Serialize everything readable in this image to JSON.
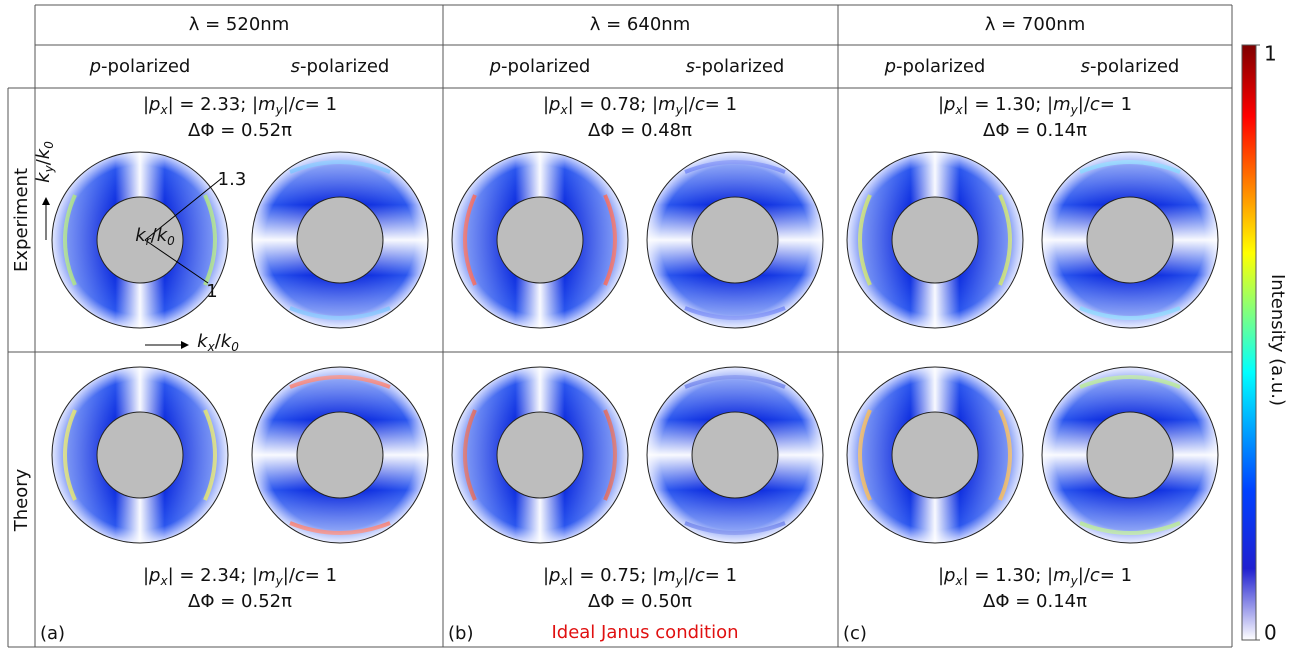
{
  "header": {
    "wavelengths": [
      "λ = 520nm",
      "λ = 640nm",
      "λ = 700nm"
    ],
    "polarizations": [
      [
        [
          "p",
          "i"
        ],
        [
          "-polarized",
          ""
        ]
      ],
      [
        [
          "s",
          "i"
        ],
        [
          "-polarized",
          ""
        ]
      ]
    ]
  },
  "rows": [
    "Experiment",
    "Theory"
  ],
  "experiment": [
    {
      "line1": [
        [
          "|",
          ""
        ],
        [
          "p",
          "i"
        ],
        [
          "x",
          "sub"
        ],
        [
          "| = 2.33; |",
          ""
        ],
        [
          "m",
          "i"
        ],
        [
          "y",
          "sub"
        ],
        [
          "|/",
          ""
        ],
        [
          "c",
          "i"
        ],
        [
          "= 1",
          ""
        ]
      ],
      "line2": "ΔΦ = 0.52π"
    },
    {
      "line1": [
        [
          "|",
          ""
        ],
        [
          "p",
          "i"
        ],
        [
          "x",
          "sub"
        ],
        [
          "| = 0.78; |",
          ""
        ],
        [
          "m",
          "i"
        ],
        [
          "y",
          "sub"
        ],
        [
          "|/",
          ""
        ],
        [
          "c",
          "i"
        ],
        [
          "= 1",
          ""
        ]
      ],
      "line2": "ΔΦ = 0.48π"
    },
    {
      "line1": [
        [
          "|",
          ""
        ],
        [
          "p",
          "i"
        ],
        [
          "x",
          "sub"
        ],
        [
          "| = 1.30; |",
          ""
        ],
        [
          "m",
          "i"
        ],
        [
          "y",
          "sub"
        ],
        [
          "|/",
          ""
        ],
        [
          "c",
          "i"
        ],
        [
          "= 1",
          ""
        ]
      ],
      "line2": "ΔΦ = 0.14π"
    }
  ],
  "theory": [
    {
      "line1": [
        [
          "|",
          ""
        ],
        [
          "p",
          "i"
        ],
        [
          "x",
          "sub"
        ],
        [
          "| = 2.34; |",
          ""
        ],
        [
          "m",
          "i"
        ],
        [
          "y",
          "sub"
        ],
        [
          "|/",
          ""
        ],
        [
          "c",
          "i"
        ],
        [
          "= 1",
          ""
        ]
      ],
      "line2": "ΔΦ = 0.52π"
    },
    {
      "line1": [
        [
          "|",
          ""
        ],
        [
          "p",
          "i"
        ],
        [
          "x",
          "sub"
        ],
        [
          "| = 0.75; |",
          ""
        ],
        [
          "m",
          "i"
        ],
        [
          "y",
          "sub"
        ],
        [
          "|/",
          ""
        ],
        [
          "c",
          "i"
        ],
        [
          "= 1",
          ""
        ]
      ],
      "line2": "ΔΦ = 0.50π"
    },
    {
      "line1": [
        [
          "|",
          ""
        ],
        [
          "p",
          "i"
        ],
        [
          "x",
          "sub"
        ],
        [
          "| = 1.30; |",
          ""
        ],
        [
          "m",
          "i"
        ],
        [
          "y",
          "sub"
        ],
        [
          "|/",
          ""
        ],
        [
          "c",
          "i"
        ],
        [
          "= 1",
          ""
        ]
      ],
      "line2": "ΔΦ = 0.14π"
    }
  ],
  "panels": [
    "(a)",
    "(b)",
    "(c)"
  ],
  "note": "Ideal Janus condition",
  "axes": {
    "ky": [
      [
        "k",
        "i"
      ],
      [
        "y",
        "sub"
      ],
      [
        "/",
        ""
      ],
      [
        "k",
        "i"
      ],
      [
        "0",
        "sub"
      ]
    ],
    "kx": [
      [
        "k",
        "i"
      ],
      [
        "x",
        "sub"
      ],
      [
        "/",
        ""
      ],
      [
        "k",
        "i"
      ],
      [
        "0",
        "sub"
      ]
    ],
    "kr": [
      [
        "k",
        "i"
      ],
      [
        "r",
        "sub"
      ],
      [
        "/",
        ""
      ],
      [
        "k",
        "i"
      ],
      [
        "0",
        "sub"
      ]
    ],
    "r_outer": "1.3",
    "r_inner": "1"
  },
  "colorbar": {
    "label": "Intensity (a.u.)",
    "ticks": [
      0,
      1
    ]
  }
}
